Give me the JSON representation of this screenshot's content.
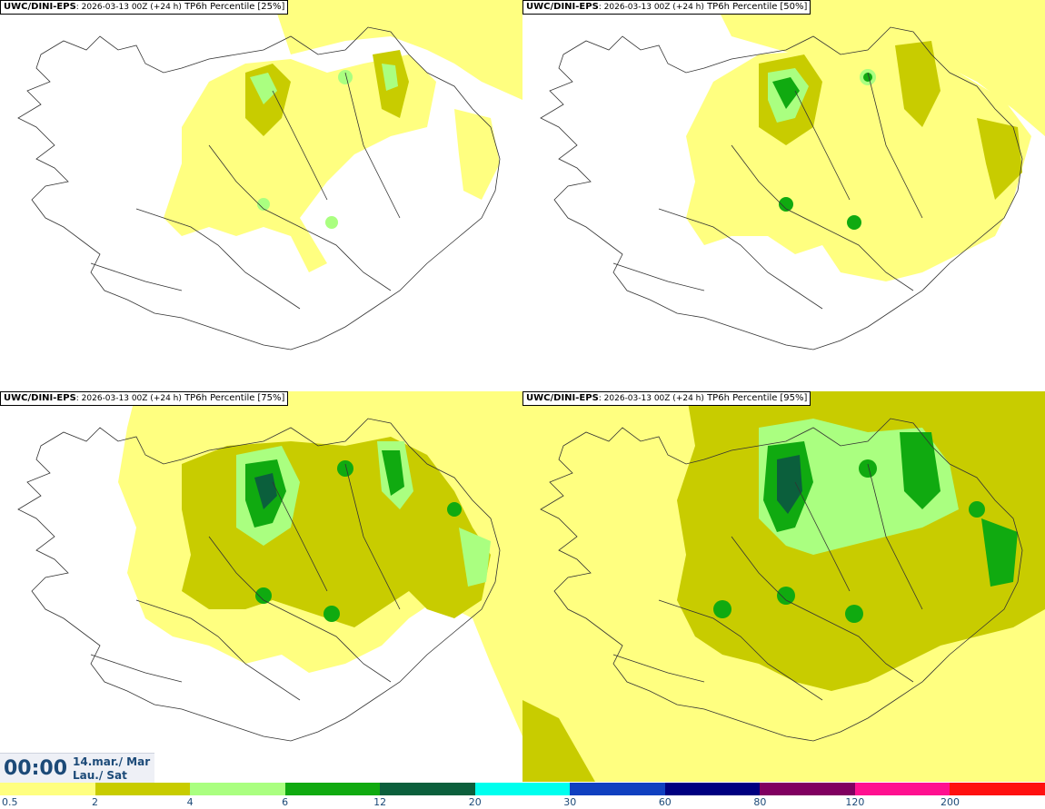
{
  "panels": [
    {
      "model": "UWC/DINI-EPS",
      "run": ": 2026-03-13 00Z (+24 h)",
      "variable": " TP6h Percentile",
      "percentile": "[25%]"
    },
    {
      "model": "UWC/DINI-EPS",
      "run": ": 2026-03-13 00Z (+24 h)",
      "variable": " TP6h Percentile",
      "percentile": "[50%]"
    },
    {
      "model": "UWC/DINI-EPS",
      "run": ": 2026-03-13 00Z (+24 h)",
      "variable": " TP6h Percentile",
      "percentile": "[75%]"
    },
    {
      "model": "UWC/DINI-EPS",
      "run": ": 2026-03-13 00Z (+24 h)",
      "variable": " TP6h Percentile",
      "percentile": "[95%]"
    }
  ],
  "valid_time": {
    "time": "00:00",
    "date_line1": "14.mar./ Mar",
    "date_line2": "Lau./ Sat"
  },
  "colorbar": {
    "colors": [
      "#ffff80",
      "#c8cc00",
      "#aaff80",
      "#10aa10",
      "#0b5f3c",
      "#00ffee",
      "#1040c0",
      "#000080",
      "#800060",
      "#ff1090",
      "#ff1010"
    ],
    "labels": [
      "0.5",
      "2",
      "4",
      "6",
      "12",
      "20",
      "30",
      "60",
      "80",
      "120",
      "200"
    ]
  }
}
